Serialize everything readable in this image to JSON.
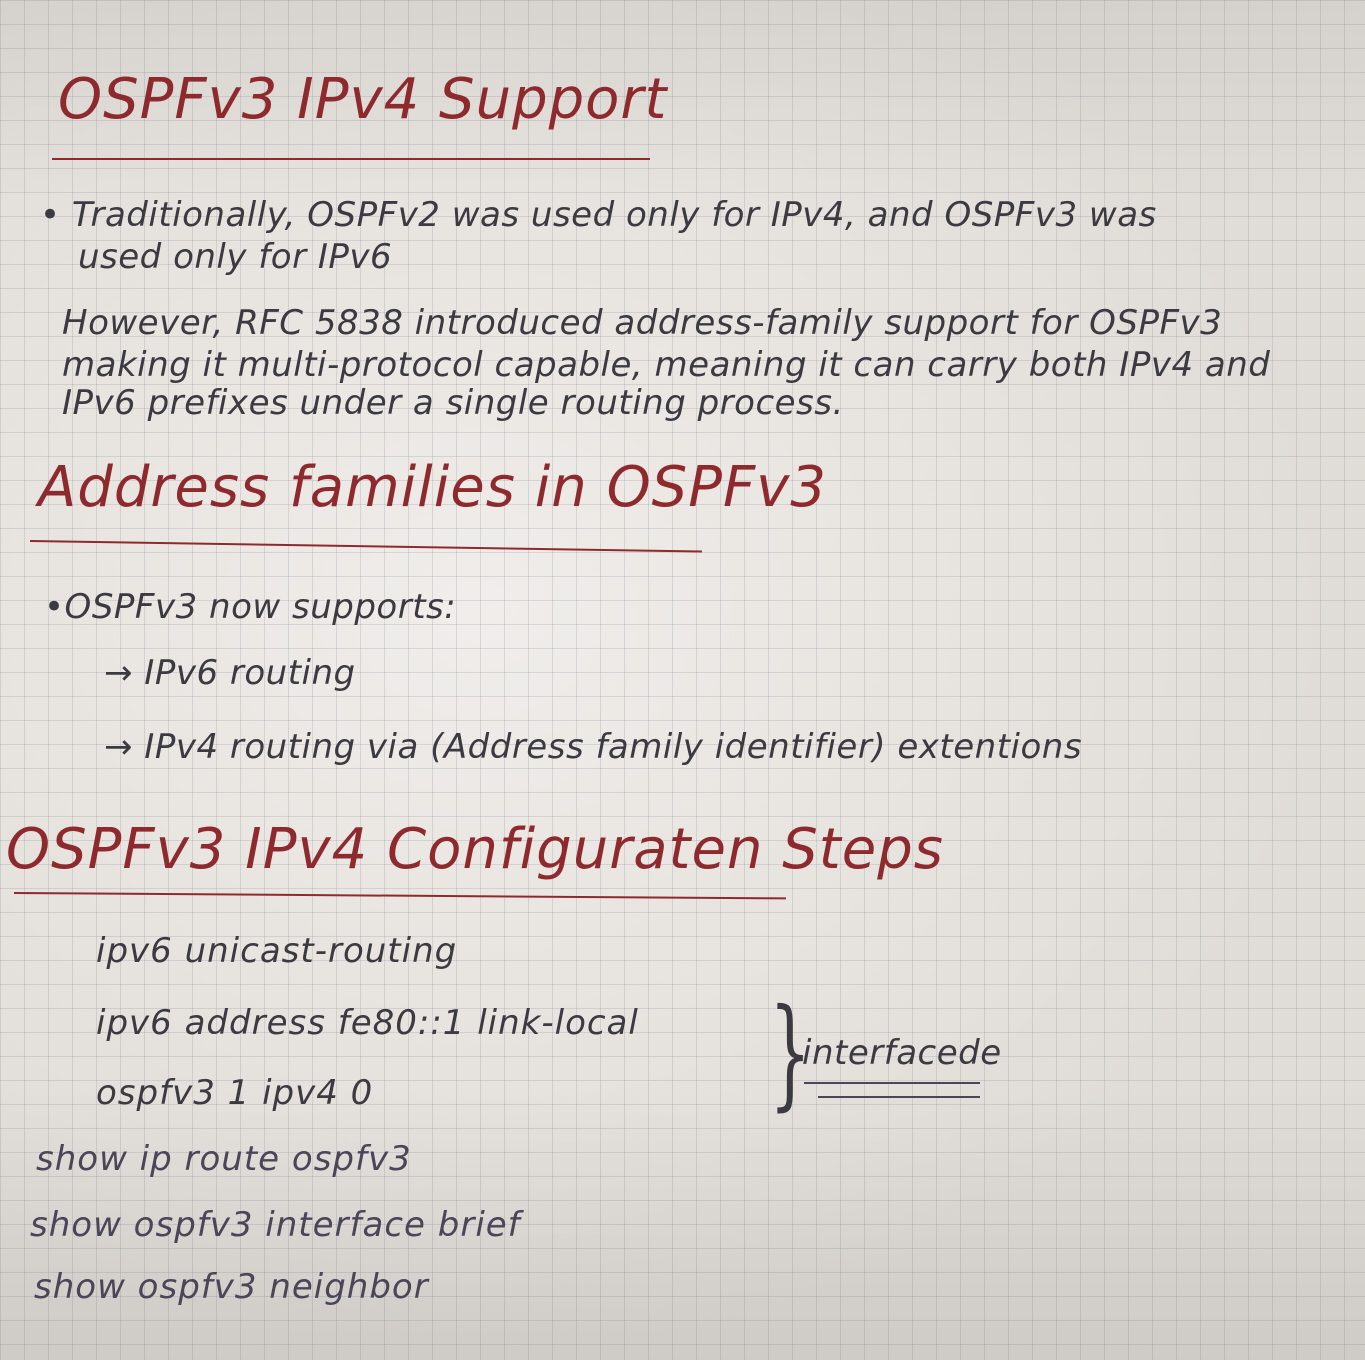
{
  "sections": {
    "s1": {
      "heading": "OSPFv3 IPv4 Support",
      "bullet1_line1": "• Traditionally, OSPFv2 was used only for IPv4, and OSPFv3 was",
      "bullet1_line2": "used only for IPv6",
      "para_line1": "However, RFC 5838 introduced address-family support for OSPFv3",
      "para_line2": "making it multi-protocol capable, meaning it can carry both IPv4 and",
      "para_line3": "IPv6 prefixes under a single routing process."
    },
    "s2": {
      "heading": "Address families in OSPFv3",
      "bullet": "•OSPFv3 now supports:",
      "item1": "→ IPv6 routing",
      "item2": "→ IPv4 routing via (Address family identifier) extentions"
    },
    "s3": {
      "heading": "OSPFv3 IPv4 Configuraten Steps",
      "cmd1": "ipv6 unicast-routing",
      "cmd2": "ipv6 address fe80::1 link-local",
      "cmd3": "ospfv3 1 ipv4 0",
      "brace_label": "interfacede",
      "cmd4": "show ip route ospfv3",
      "cmd5": "show ospfv3 interface brief",
      "cmd6": "show ospfv3 neighbor"
    }
  }
}
